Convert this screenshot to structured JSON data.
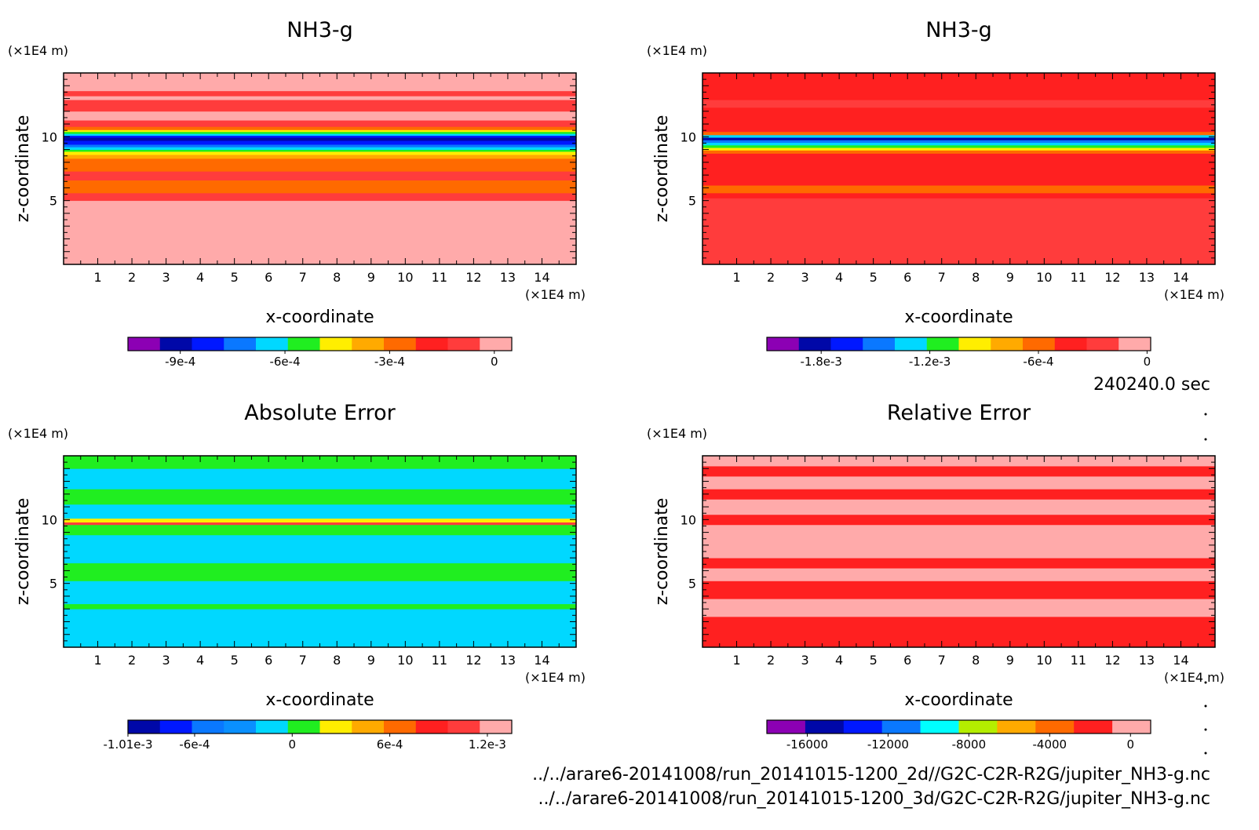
{
  "time_label": "240240.0 sec",
  "footer_lines": [
    "../../arare6-20141008/run_20141015-1200_2d//G2C-C2R-R2G/jupiter_NH3-g.nc",
    "../../arare6-20141008/run_20141015-1200_3d/G2C-C2R-R2G/jupiter_NH3-g.nc"
  ],
  "chart_data": [
    {
      "type": "heatmap",
      "title": "NH3-g",
      "xlabel": "x-coordinate",
      "ylabel": "z-coordinate",
      "x_unit": "(×1E4 m)",
      "y_unit": "(×1E4 m)",
      "xlim": [
        0,
        15
      ],
      "ylim": [
        0,
        15
      ],
      "xticks": [
        1,
        2,
        3,
        4,
        5,
        6,
        7,
        8,
        9,
        10,
        11,
        12,
        13,
        14
      ],
      "yticks": [
        5,
        10
      ],
      "colorbar": {
        "colors": [
          "#8c00b4",
          "#0008a8",
          "#0018ff",
          "#0a78ff",
          "#00d8ff",
          "#20ee20",
          "#ffee00",
          "#ffaa00",
          "#ff6a00",
          "#ff2020",
          "#ff3c3c",
          "#ffaaaa"
        ],
        "tick_labels": [
          "-9e-4",
          "-6e-4",
          "-3e-4",
          "0"
        ],
        "tick_values": [
          -0.0009,
          -0.0006,
          -0.0003,
          0
        ],
        "range": [
          -0.00105,
          5e-05
        ]
      },
      "bands": [
        {
          "z0": 0,
          "z1": 5.0,
          "color": "#ffaaaa"
        },
        {
          "z0": 5.0,
          "z1": 5.6,
          "color": "#ff3c3c"
        },
        {
          "z0": 5.6,
          "z1": 6.6,
          "color": "#ff6a00"
        },
        {
          "z0": 6.6,
          "z1": 7.3,
          "color": "#ff3c3c"
        },
        {
          "z0": 7.3,
          "z1": 8.3,
          "color": "#ff6a00"
        },
        {
          "z0": 8.3,
          "z1": 8.6,
          "color": "#ffaa00"
        },
        {
          "z0": 8.6,
          "z1": 8.85,
          "color": "#ffee00"
        },
        {
          "z0": 8.85,
          "z1": 9.0,
          "color": "#20ee20"
        },
        {
          "z0": 9.0,
          "z1": 9.2,
          "color": "#00d8ff"
        },
        {
          "z0": 9.2,
          "z1": 9.4,
          "color": "#0a78ff"
        },
        {
          "z0": 9.4,
          "z1": 9.7,
          "color": "#0018ff"
        },
        {
          "z0": 9.7,
          "z1": 9.95,
          "color": "#0008a8"
        },
        {
          "z0": 9.95,
          "z1": 10.1,
          "color": "#0018ff"
        },
        {
          "z0": 10.1,
          "z1": 10.25,
          "color": "#00d8ff"
        },
        {
          "z0": 10.25,
          "z1": 10.4,
          "color": "#20ee20"
        },
        {
          "z0": 10.4,
          "z1": 10.55,
          "color": "#ffee00"
        },
        {
          "z0": 10.55,
          "z1": 10.8,
          "color": "#ff6a00"
        },
        {
          "z0": 10.8,
          "z1": 11.3,
          "color": "#ff3c3c"
        },
        {
          "z0": 11.3,
          "z1": 12.0,
          "color": "#ffaaaa"
        },
        {
          "z0": 12.0,
          "z1": 12.9,
          "color": "#ff3c3c"
        },
        {
          "z0": 12.9,
          "z1": 13.2,
          "color": "#ffaaaa"
        },
        {
          "z0": 13.2,
          "z1": 13.6,
          "color": "#ff3c3c"
        },
        {
          "z0": 13.6,
          "z1": 15.0,
          "color": "#ffaaaa"
        }
      ]
    },
    {
      "type": "heatmap",
      "title": "NH3-g",
      "xlabel": "x-coordinate",
      "ylabel": "z-coordinate",
      "x_unit": "(×1E4 m)",
      "y_unit": "(×1E4 m)",
      "xlim": [
        0,
        15
      ],
      "ylim": [
        0,
        15
      ],
      "xticks": [
        1,
        2,
        3,
        4,
        5,
        6,
        7,
        8,
        9,
        10,
        11,
        12,
        13,
        14
      ],
      "yticks": [
        5,
        10
      ],
      "colorbar": {
        "colors": [
          "#8c00b4",
          "#0008a8",
          "#0018ff",
          "#0a78ff",
          "#00d8ff",
          "#20ee20",
          "#ffee00",
          "#ffaa00",
          "#ff6a00",
          "#ff2020",
          "#ff3c3c",
          "#ffaaaa"
        ],
        "tick_labels": [
          "-1.8e-3",
          "-1.2e-3",
          "-6e-4",
          "0"
        ],
        "tick_values": [
          -0.0018,
          -0.0012,
          -0.0006,
          0
        ],
        "range": [
          -0.0021,
          2e-05
        ]
      },
      "bands": [
        {
          "z0": 0,
          "z1": 5.2,
          "color": "#ff3c3c"
        },
        {
          "z0": 5.2,
          "z1": 5.6,
          "color": "#ff2020"
        },
        {
          "z0": 5.6,
          "z1": 6.2,
          "color": "#ff6a00"
        },
        {
          "z0": 6.2,
          "z1": 8.7,
          "color": "#ff2020"
        },
        {
          "z0": 8.7,
          "z1": 8.95,
          "color": "#ff6a00"
        },
        {
          "z0": 8.95,
          "z1": 9.15,
          "color": "#ffee00"
        },
        {
          "z0": 9.15,
          "z1": 9.35,
          "color": "#20ee20"
        },
        {
          "z0": 9.35,
          "z1": 9.55,
          "color": "#00d8ff"
        },
        {
          "z0": 9.55,
          "z1": 9.75,
          "color": "#0a78ff"
        },
        {
          "z0": 9.75,
          "z1": 9.95,
          "color": "#0008a8"
        },
        {
          "z0": 9.95,
          "z1": 10.15,
          "color": "#00d8ff"
        },
        {
          "z0": 10.15,
          "z1": 10.4,
          "color": "#ff6a00"
        },
        {
          "z0": 10.4,
          "z1": 12.3,
          "color": "#ff2020"
        },
        {
          "z0": 12.3,
          "z1": 12.9,
          "color": "#ff3c3c"
        },
        {
          "z0": 12.9,
          "z1": 15.0,
          "color": "#ff2020"
        }
      ]
    },
    {
      "type": "heatmap",
      "title": "Absolute Error",
      "xlabel": "x-coordinate",
      "ylabel": "z-coordinate",
      "x_unit": "(×1E4 m)",
      "y_unit": "(×1E4 m)",
      "xlim": [
        0,
        15
      ],
      "ylim": [
        0,
        15
      ],
      "xticks": [
        1,
        2,
        3,
        4,
        5,
        6,
        7,
        8,
        9,
        10,
        11,
        12,
        13,
        14
      ],
      "yticks": [
        5,
        10
      ],
      "colorbar": {
        "colors": [
          "#0008a8",
          "#0018ff",
          "#0a78ff",
          "#0a90ff",
          "#00d8ff",
          "#20ee20",
          "#ffee00",
          "#ffaa00",
          "#ff6a00",
          "#ff2020",
          "#ff3c3c",
          "#ffaaaa"
        ],
        "tick_labels": [
          "-1.01e-3",
          "-6e-4",
          "0",
          "6e-4",
          "1.2e-3"
        ],
        "tick_values": [
          -0.00101,
          -0.0006,
          0,
          0.0006,
          0.0012
        ],
        "range": [
          -0.00101,
          0.00135
        ]
      },
      "bands": [
        {
          "z0": 0,
          "z1": 3.0,
          "color": "#00d8ff"
        },
        {
          "z0": 3.0,
          "z1": 3.4,
          "color": "#20ee20"
        },
        {
          "z0": 3.4,
          "z1": 5.2,
          "color": "#00d8ff"
        },
        {
          "z0": 5.2,
          "z1": 6.6,
          "color": "#20ee20"
        },
        {
          "z0": 6.6,
          "z1": 8.8,
          "color": "#00d8ff"
        },
        {
          "z0": 8.8,
          "z1": 9.6,
          "color": "#20ee20"
        },
        {
          "z0": 9.6,
          "z1": 9.8,
          "color": "#ff3c3c"
        },
        {
          "z0": 9.8,
          "z1": 10.1,
          "color": "#ffee00"
        },
        {
          "z0": 10.1,
          "z1": 11.2,
          "color": "#00d8ff"
        },
        {
          "z0": 11.2,
          "z1": 12.4,
          "color": "#20ee20"
        },
        {
          "z0": 12.4,
          "z1": 13.0,
          "color": "#00d8ff"
        },
        {
          "z0": 13.0,
          "z1": 14.0,
          "color": "#00d8ff"
        },
        {
          "z0": 14.0,
          "z1": 15.0,
          "color": "#20ee20"
        }
      ]
    },
    {
      "type": "heatmap",
      "title": "Relative Error",
      "xlabel": "x-coordinate",
      "ylabel": "z-coordinate",
      "x_unit": "(×1E4 m)",
      "y_unit": "(×1E4 m)",
      "xlim": [
        0,
        15
      ],
      "ylim": [
        0,
        15
      ],
      "xticks": [
        1,
        2,
        3,
        4,
        5,
        6,
        7,
        8,
        9,
        10,
        11,
        12,
        13,
        14
      ],
      "yticks": [
        5,
        10
      ],
      "colorbar": {
        "colors": [
          "#8c00b4",
          "#0008a8",
          "#0018ff",
          "#0a78ff",
          "#00ffff",
          "#b4ee00",
          "#ffaa00",
          "#ff6a00",
          "#ff2020",
          "#ffaaaa"
        ],
        "tick_labels": [
          "-16000",
          "-12000",
          "-8000",
          "-4000",
          "0"
        ],
        "tick_values": [
          -16000,
          -12000,
          -8000,
          -4000,
          0
        ],
        "range": [
          -18000,
          1000
        ]
      },
      "bands": [
        {
          "z0": 0,
          "z1": 2.4,
          "color": "#ff2020"
        },
        {
          "z0": 2.4,
          "z1": 3.8,
          "color": "#ffaaaa"
        },
        {
          "z0": 3.8,
          "z1": 5.2,
          "color": "#ff2020"
        },
        {
          "z0": 5.2,
          "z1": 6.2,
          "color": "#ffaaaa"
        },
        {
          "z0": 6.2,
          "z1": 7.0,
          "color": "#ff2020"
        },
        {
          "z0": 7.0,
          "z1": 9.6,
          "color": "#ffaaaa"
        },
        {
          "z0": 9.6,
          "z1": 10.4,
          "color": "#ff2020"
        },
        {
          "z0": 10.4,
          "z1": 11.6,
          "color": "#ffaaaa"
        },
        {
          "z0": 11.6,
          "z1": 12.4,
          "color": "#ff2020"
        },
        {
          "z0": 12.4,
          "z1": 13.4,
          "color": "#ffaaaa"
        },
        {
          "z0": 13.4,
          "z1": 14.2,
          "color": "#ff2020"
        },
        {
          "z0": 14.2,
          "z1": 15.0,
          "color": "#ffaaaa"
        }
      ]
    }
  ]
}
